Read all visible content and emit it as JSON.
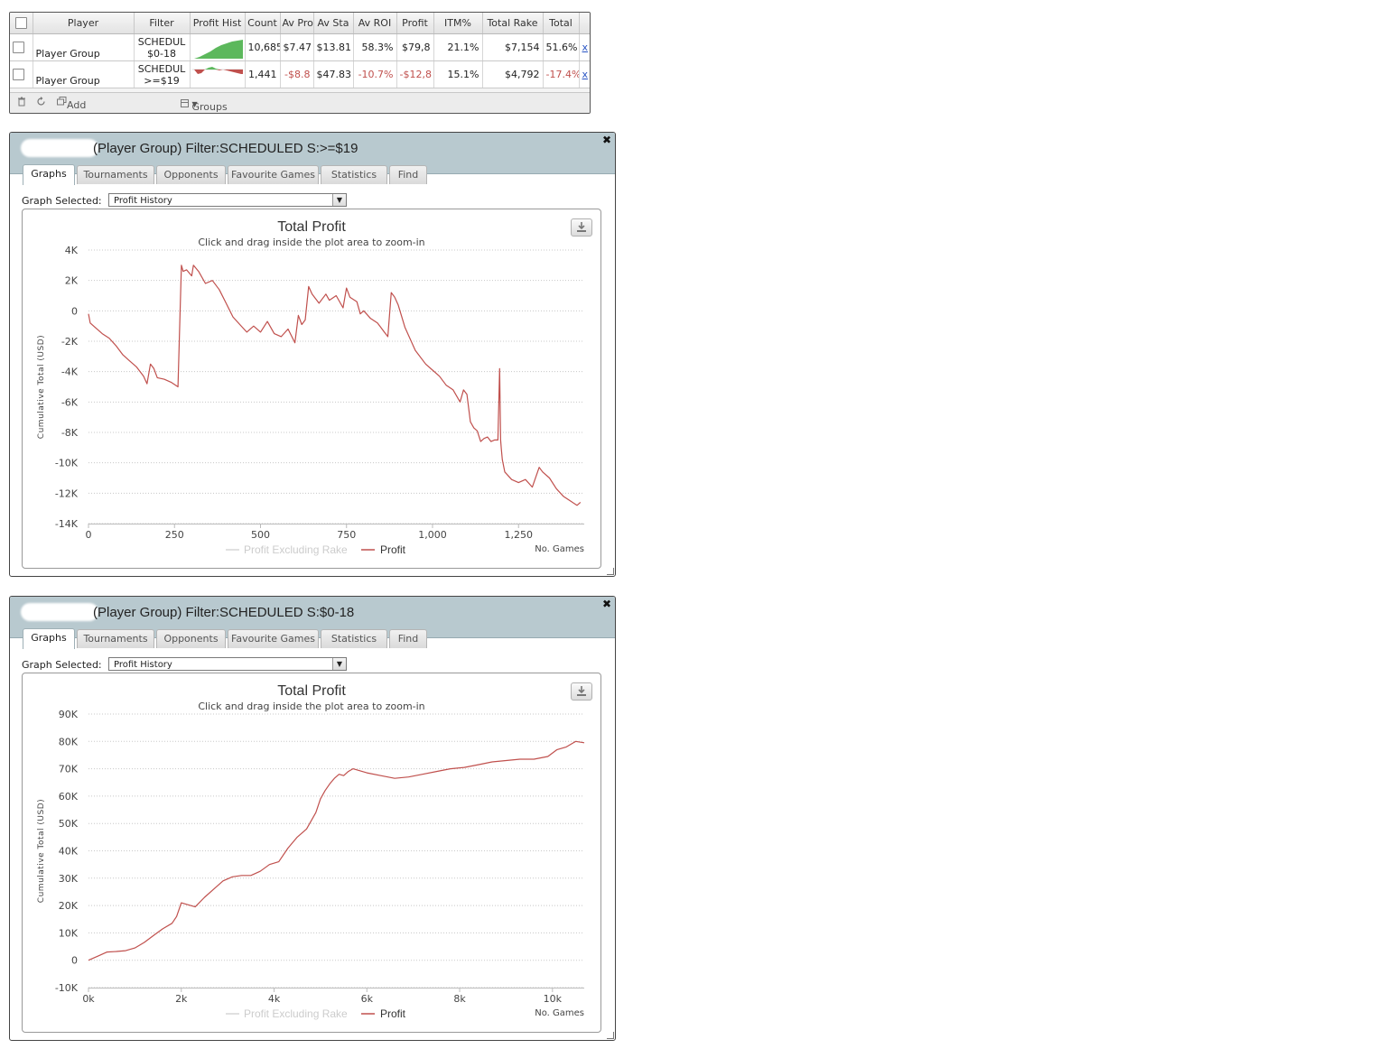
{
  "summary": {
    "columns": [
      "Player",
      "Filter",
      "Profit Hist",
      "Count",
      "Av Pro",
      "Av Sta",
      "Av ROI",
      "Profit",
      "ITM%",
      "Total Rake",
      "Total"
    ],
    "rows": [
      {
        "player": "Player Group",
        "filter_line1": "SCHEDUL",
        "filter_line2": "$0-18",
        "count": "10,685",
        "av_profit": "$7.47",
        "av_stake": "$13.81",
        "av_roi": "58.3%",
        "profit": "$79,8",
        "itm": "21.1%",
        "total_rake": "$7,154",
        "total": "51.6%",
        "delete": "x",
        "trend": "up"
      },
      {
        "player": "Player Group",
        "filter_line1": "SCHEDUL",
        "filter_line2": ">=$19",
        "count": "1,441",
        "av_profit": "-$8.8",
        "av_stake": "$47.83",
        "av_roi": "-10.7%",
        "profit": "-$12,8",
        "itm": "15.1%",
        "total_rake": "$4,792",
        "total": "-17.4%",
        "delete": "x",
        "trend": "down"
      }
    ],
    "footer": {
      "add_stats": "Add Other Statistics",
      "groups": "Groups"
    }
  },
  "windows": [
    {
      "title": "(Player Group) Filter:SCHEDULED S:>=$19",
      "tabs": [
        "Graphs",
        "Tournaments",
        "Opponents",
        "Favourite Games",
        "Statistics",
        "Find"
      ],
      "active_tab": 0,
      "graph_selected_label": "Graph Selected:",
      "graph_selected_value": "Profit History"
    },
    {
      "title": "(Player Group) Filter:SCHEDULED S:$0-18",
      "tabs": [
        "Graphs",
        "Tournaments",
        "Opponents",
        "Favourite Games",
        "Statistics",
        "Find"
      ],
      "active_tab": 0,
      "graph_selected_label": "Graph Selected:",
      "graph_selected_value": "Profit History"
    }
  ],
  "chart_data": [
    {
      "type": "line",
      "title": "Total Profit",
      "subtitle": "Click and drag inside the plot area to zoom-in",
      "xlabel": "No. Games",
      "ylabel": "Cumulative Total (USD)",
      "xlim": [
        0,
        1441
      ],
      "ylim": [
        -14000,
        4000
      ],
      "xticks": [
        0,
        250,
        500,
        750,
        1000,
        1250
      ],
      "xtick_labels": [
        "0",
        "250",
        "500",
        "750",
        "1,000",
        "1,250"
      ],
      "yticks": [
        4000,
        2000,
        0,
        -2000,
        -4000,
        -6000,
        -8000,
        -10000,
        -12000,
        -14000
      ],
      "ytick_labels": [
        "4K",
        "2K",
        "0",
        "-2K",
        "-4K",
        "-6K",
        "-8K",
        "-10K",
        "-12K",
        "-14K"
      ],
      "grid": true,
      "legend": [
        "Profit Excluding Rake",
        "Profit"
      ],
      "series": [
        {
          "name": "Profit",
          "color": "#c0504d",
          "x": [
            0,
            5,
            15,
            40,
            60,
            80,
            100,
            120,
            140,
            160,
            170,
            180,
            190,
            200,
            220,
            240,
            260,
            270,
            275,
            285,
            300,
            305,
            320,
            340,
            360,
            380,
            400,
            420,
            440,
            460,
            480,
            500,
            520,
            540,
            560,
            580,
            600,
            610,
            620,
            630,
            640,
            650,
            670,
            690,
            700,
            720,
            740,
            750,
            760,
            780,
            790,
            800,
            820,
            840,
            850,
            860,
            870,
            880,
            890,
            900,
            920,
            950,
            980,
            1000,
            1020,
            1040,
            1060,
            1080,
            1090,
            1100,
            1110,
            1120,
            1130,
            1140,
            1150,
            1160,
            1170,
            1180,
            1190,
            1195,
            1198,
            1200,
            1203,
            1210,
            1230,
            1250,
            1270,
            1290,
            1310,
            1320,
            1340,
            1360,
            1380,
            1400,
            1420,
            1430
          ],
          "y": [
            -200,
            -800,
            -1000,
            -1500,
            -1800,
            -2300,
            -2900,
            -3300,
            -3700,
            -4300,
            -4800,
            -3500,
            -3800,
            -4400,
            -4500,
            -4700,
            -5000,
            3000,
            2600,
            2700,
            2300,
            3000,
            2600,
            1800,
            2000,
            1400,
            500,
            -400,
            -900,
            -1400,
            -1000,
            -1400,
            -700,
            -1500,
            -1700,
            -1200,
            -2100,
            -300,
            -900,
            -600,
            1600,
            1100,
            500,
            1100,
            700,
            1000,
            200,
            1500,
            900,
            600,
            -200,
            0,
            -500,
            -800,
            -1100,
            -1400,
            -1700,
            1200,
            900,
            400,
            -1100,
            -2600,
            -3500,
            -3900,
            -4300,
            -4900,
            -5200,
            -6000,
            -5200,
            -5500,
            -7300,
            -7700,
            -7900,
            -8600,
            -8400,
            -8300,
            -8600,
            -8500,
            -8500,
            -3800,
            -8500,
            -9100,
            -9800,
            -10600,
            -11100,
            -11300,
            -11100,
            -11600,
            -10300,
            -10600,
            -11000,
            -11700,
            -12200,
            -12500,
            -12800,
            -12600
          ]
        }
      ]
    },
    {
      "type": "line",
      "title": "Total Profit",
      "subtitle": "Click and drag inside the plot area to zoom-in",
      "xlabel": "No. Games",
      "ylabel": "Cumulative Total (USD)",
      "xlim": [
        0,
        10685
      ],
      "ylim": [
        -10000,
        90000
      ],
      "xticks": [
        0,
        2000,
        4000,
        6000,
        8000,
        10000
      ],
      "xtick_labels": [
        "0k",
        "2k",
        "4k",
        "6k",
        "8k",
        "10k"
      ],
      "yticks": [
        90000,
        80000,
        70000,
        60000,
        50000,
        40000,
        30000,
        20000,
        10000,
        0,
        -10000
      ],
      "ytick_labels": [
        "90K",
        "80K",
        "70K",
        "60K",
        "50K",
        "40K",
        "30K",
        "20K",
        "10K",
        "0",
        "-10K"
      ],
      "grid": true,
      "legend": [
        "Profit Excluding Rake",
        "Profit"
      ],
      "series": [
        {
          "name": "Profit",
          "color": "#c0504d",
          "x": [
            0,
            200,
            400,
            600,
            800,
            1000,
            1200,
            1400,
            1600,
            1800,
            1900,
            2000,
            2100,
            2300,
            2500,
            2700,
            2900,
            3100,
            3300,
            3500,
            3700,
            3900,
            4100,
            4300,
            4500,
            4700,
            4900,
            5000,
            5100,
            5200,
            5300,
            5400,
            5500,
            5600,
            5700,
            5800,
            6000,
            6300,
            6600,
            6900,
            7200,
            7500,
            7800,
            8100,
            8400,
            8700,
            9000,
            9300,
            9600,
            9900,
            10100,
            10300,
            10500,
            10685
          ],
          "y": [
            0,
            1500,
            3000,
            3200,
            3500,
            4500,
            6500,
            9000,
            11500,
            13500,
            16000,
            21000,
            20500,
            19500,
            23000,
            26000,
            29000,
            30500,
            31000,
            31000,
            32500,
            35000,
            36000,
            41000,
            45000,
            48000,
            54000,
            59000,
            62000,
            64500,
            66500,
            68000,
            67500,
            69000,
            70000,
            69500,
            68500,
            67500,
            66500,
            67000,
            68000,
            69000,
            70000,
            70500,
            71500,
            72500,
            73000,
            73500,
            73500,
            74500,
            77000,
            78000,
            80000,
            79500
          ]
        }
      ]
    }
  ]
}
